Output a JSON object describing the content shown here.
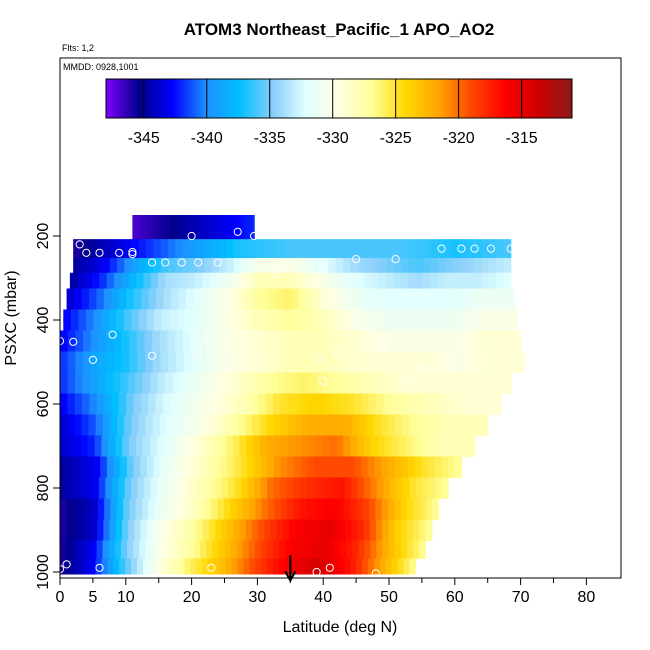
{
  "chart_data": {
    "type": "heatmap",
    "title": "ATOM3 Northeast_Pacific_1 APO_AO2",
    "notes": {
      "flights": "Flts: 1,2",
      "dates": "MMDD: 0928,1001"
    },
    "xlabel": "Latitude (deg N)",
    "ylabel": "PSXC (mbar)",
    "xlim": [
      0,
      85
    ],
    "ylim": [
      1000,
      0
    ],
    "x_ticks": [
      0,
      10,
      20,
      30,
      40,
      50,
      60,
      70,
      80
    ],
    "x_tick_labels": [
      "0",
      "5",
      "10",
      "20",
      "30",
      "40",
      "50",
      "60",
      "70",
      "80"
    ],
    "x_tick_label_values": [
      0,
      5,
      10,
      20,
      30,
      40,
      50,
      60,
      70,
      80
    ],
    "x_minor_ticks": [
      5,
      15,
      25,
      35,
      45,
      55,
      65,
      75
    ],
    "y_ticks": [
      200,
      400,
      600,
      800,
      1000
    ],
    "y_tick_labels": [
      "200",
      "400",
      "600",
      "800",
      "1000"
    ],
    "colorbar": {
      "min": -348,
      "max": -311,
      "tick_values": [
        -345,
        -340,
        -335,
        -330,
        -325,
        -320,
        -315
      ],
      "tick_labels": [
        "-345",
        "-340",
        "-335",
        "-330",
        "-325",
        "-320",
        "-315"
      ],
      "colors": [
        "#7f00ff",
        "#00008b",
        "#0000ff",
        "#1e90ff",
        "#00bfff",
        "#87cefa",
        "#e0ffff",
        "#ffffe0",
        "#ffff99",
        "#ffd700",
        "#ffa500",
        "#ff4500",
        "#ff0000",
        "#cd0000",
        "#8b1a1a"
      ]
    },
    "rows": [
      {
        "p": 185,
        "lat_min": 11,
        "lat_max": 29.5,
        "values": [
          -347,
          -346,
          -345,
          -344,
          -343,
          -342
        ]
      },
      {
        "p": 230,
        "lat_min": 2,
        "lat_max": 68.5,
        "values": [
          -346,
          -343,
          -340,
          -337,
          -336,
          -336,
          -336,
          -337,
          -336
        ]
      },
      {
        "p": 275,
        "lat_min": 2,
        "lat_max": 68.5,
        "values": [
          -345,
          -343,
          -339,
          -336,
          -335,
          -333,
          -330,
          -330,
          -332,
          -334,
          -335,
          -336,
          -335,
          -334,
          -333
        ]
      },
      {
        "p": 300,
        "lat_min": 1.5,
        "lat_max": 68.5,
        "values": [
          -345,
          -342,
          -338,
          -334,
          -333,
          -331,
          -328,
          -328,
          -330,
          -332,
          -333,
          -334,
          -333,
          -333,
          -332
        ]
      },
      {
        "p": 350,
        "lat_min": 1,
        "lat_max": 69,
        "values": [
          -344,
          -341,
          -337,
          -334,
          -332,
          -330,
          -327,
          -326,
          -329,
          -331,
          -332,
          -332,
          -332,
          -331,
          -331
        ]
      },
      {
        "p": 400,
        "lat_min": 0.5,
        "lat_max": 69.5,
        "values": [
          -343,
          -340,
          -336,
          -333,
          -332,
          -330,
          -328,
          -327,
          -328,
          -330,
          -331,
          -331,
          -331,
          -330,
          -330
        ]
      },
      {
        "p": 450,
        "lat_min": 0,
        "lat_max": 70,
        "values": [
          -343,
          -340,
          -337,
          -334,
          -332,
          -330,
          -329,
          -328,
          -328,
          -329,
          -330,
          -330,
          -330,
          -329,
          -329
        ]
      },
      {
        "p": 500,
        "lat_min": 0,
        "lat_max": 70.5,
        "values": [
          -342,
          -339,
          -337,
          -334,
          -332,
          -330,
          -329,
          -328,
          -328,
          -329,
          -329,
          -329,
          -330,
          -329,
          -329
        ]
      },
      {
        "p": 550,
        "lat_min": 0,
        "lat_max": 68.5,
        "values": [
          -342,
          -339,
          -336,
          -333,
          -331,
          -329,
          -327,
          -326,
          -327,
          -328,
          -329,
          -329,
          -329,
          -329
        ]
      },
      {
        "p": 600,
        "lat_min": 0,
        "lat_max": 67,
        "values": [
          -343,
          -340,
          -335,
          -332,
          -330,
          -328,
          -325,
          -324,
          -325,
          -327,
          -328,
          -329,
          -329
        ]
      },
      {
        "p": 650,
        "lat_min": 0,
        "lat_max": 65,
        "values": [
          -344,
          -341,
          -335,
          -332,
          -330,
          -327,
          -324,
          -322,
          -322,
          -325,
          -327,
          -328,
          -328
        ]
      },
      {
        "p": 700,
        "lat_min": 0,
        "lat_max": 63,
        "values": [
          -344,
          -342,
          -335,
          -332,
          -329,
          -326,
          -322,
          -321,
          -320,
          -324,
          -326,
          -328,
          -328
        ]
      },
      {
        "p": 750,
        "lat_min": 0,
        "lat_max": 61,
        "values": [
          -345,
          -343,
          -335,
          -331,
          -328,
          -325,
          -321,
          -319,
          -319,
          -322,
          -325,
          -327
        ]
      },
      {
        "p": 800,
        "lat_min": 0,
        "lat_max": 59,
        "values": [
          -345,
          -343,
          -335,
          -331,
          -328,
          -325,
          -320,
          -318,
          -317,
          -321,
          -325,
          -327
        ]
      },
      {
        "p": 850,
        "lat_min": 0,
        "lat_max": 57.5,
        "values": [
          -346,
          -344,
          -335,
          -331,
          -328,
          -324,
          -320,
          -317,
          -316,
          -319,
          -324,
          -327
        ]
      },
      {
        "p": 900,
        "lat_min": 0,
        "lat_max": 56.5,
        "values": [
          -346,
          -344,
          -335,
          -330,
          -327,
          -323,
          -319,
          -316,
          -315,
          -318,
          -324,
          -327
        ]
      },
      {
        "p": 950,
        "lat_min": 0,
        "lat_max": 55.5,
        "values": [
          -346,
          -343,
          -335,
          -330,
          -327,
          -323,
          -319,
          -316,
          -315,
          -318,
          -323,
          -327
        ]
      },
      {
        "p": 985,
        "lat_min": 0,
        "lat_max": 54,
        "values": [
          -346,
          -343,
          -336,
          -330,
          -326,
          -323,
          -319,
          -316,
          -314,
          -317,
          -322,
          -327
        ]
      }
    ],
    "observations": [
      {
        "lat": 3,
        "p": 220
      },
      {
        "lat": 11,
        "p": 238
      },
      {
        "lat": 20,
        "p": 200
      },
      {
        "lat": 27,
        "p": 190
      },
      {
        "lat": 29.5,
        "p": 200
      },
      {
        "lat": 4,
        "p": 240
      },
      {
        "lat": 6,
        "p": 240
      },
      {
        "lat": 9,
        "p": 240
      },
      {
        "lat": 11,
        "p": 243
      },
      {
        "lat": 14,
        "p": 263
      },
      {
        "lat": 16,
        "p": 263
      },
      {
        "lat": 18.5,
        "p": 263
      },
      {
        "lat": 21,
        "p": 263
      },
      {
        "lat": 24,
        "p": 263
      },
      {
        "lat": 34,
        "p": 270
      },
      {
        "lat": 40,
        "p": 278
      },
      {
        "lat": 45,
        "p": 255
      },
      {
        "lat": 51,
        "p": 255
      },
      {
        "lat": 58,
        "p": 230
      },
      {
        "lat": 61,
        "p": 230
      },
      {
        "lat": 63,
        "p": 230
      },
      {
        "lat": 65.5,
        "p": 230
      },
      {
        "lat": 68.5,
        "p": 230
      },
      {
        "lat": 33,
        "p": 290
      },
      {
        "lat": 8,
        "p": 435
      },
      {
        "lat": 0,
        "p": 450
      },
      {
        "lat": 2,
        "p": 452
      },
      {
        "lat": 22.5,
        "p": 438
      },
      {
        "lat": 14,
        "p": 485
      },
      {
        "lat": 21,
        "p": 476
      },
      {
        "lat": 42,
        "p": 474
      },
      {
        "lat": 49,
        "p": 466
      },
      {
        "lat": 5,
        "p": 495
      },
      {
        "lat": 39.5,
        "p": 490
      },
      {
        "lat": 55,
        "p": 517
      },
      {
        "lat": 40,
        "p": 545
      },
      {
        "lat": 52.5,
        "p": 545
      },
      {
        "lat": 1,
        "p": 982
      },
      {
        "lat": 0,
        "p": 993
      },
      {
        "lat": 6,
        "p": 990
      },
      {
        "lat": 23,
        "p": 990
      },
      {
        "lat": 39,
        "p": 1000
      },
      {
        "lat": 41,
        "p": 990
      },
      {
        "lat": 48,
        "p": 1003
      }
    ],
    "marker": {
      "lat": 35,
      "p_from": 960,
      "p_to": 1020
    }
  }
}
